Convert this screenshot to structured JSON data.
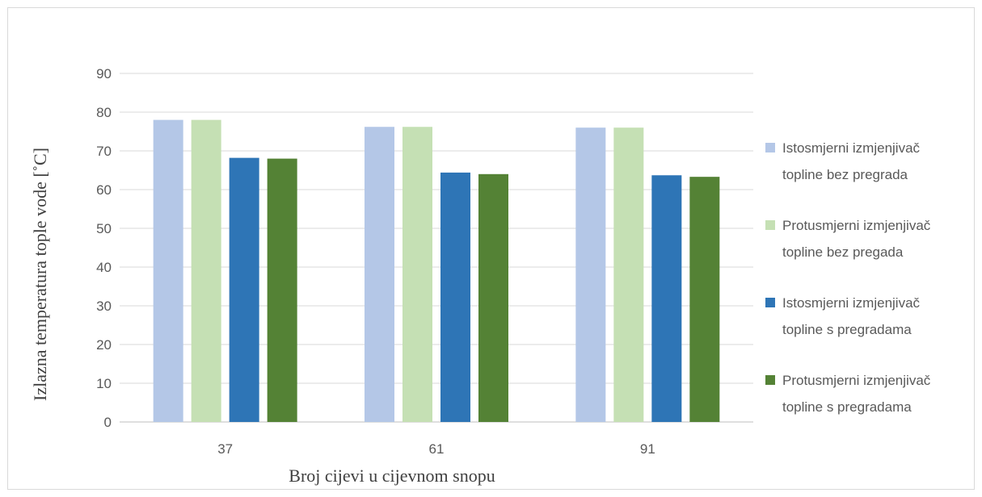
{
  "chart_data": {
    "type": "bar",
    "title": "",
    "xlabel": "Broj cijevi u cijevnom snopu",
    "ylabel": "Izlazna temperatura tople vode  [˚C]",
    "categories": [
      "37",
      "61",
      "91"
    ],
    "ylim": [
      0,
      90
    ],
    "yticks": [
      0,
      10,
      20,
      30,
      40,
      50,
      60,
      70,
      80,
      90
    ],
    "grid": true,
    "legend_position": "right",
    "series": [
      {
        "name": "Istosmjerni izmjenjivač topline bez pregrada",
        "legend_lines": [
          "Istosmjerni izmjenjivač",
          "topline bez pregrada"
        ],
        "color": "#b4c7e7",
        "values": [
          78.0,
          76.2,
          76.0
        ]
      },
      {
        "name": "Protusmjerni izmjenjivač topline bez pregada",
        "legend_lines": [
          "Protusmjerni izmjenjivač",
          "topline bez pregada"
        ],
        "color": "#c5e0b4",
        "values": [
          78.0,
          76.2,
          76.0
        ]
      },
      {
        "name": "Istosmjerni izmjenjivač topline s pregradama",
        "legend_lines": [
          "Istosmjerni izmjenjivač",
          "topline s pregradama"
        ],
        "color": "#2e75b6",
        "values": [
          68.2,
          64.4,
          63.7
        ]
      },
      {
        "name": "Protusmjerni izmjenjivač topline s pregradama",
        "legend_lines": [
          "Protusmjerni izmjenjivač",
          "topline s pregradama"
        ],
        "color": "#548235",
        "values": [
          68.0,
          64.0,
          63.3
        ]
      }
    ]
  }
}
